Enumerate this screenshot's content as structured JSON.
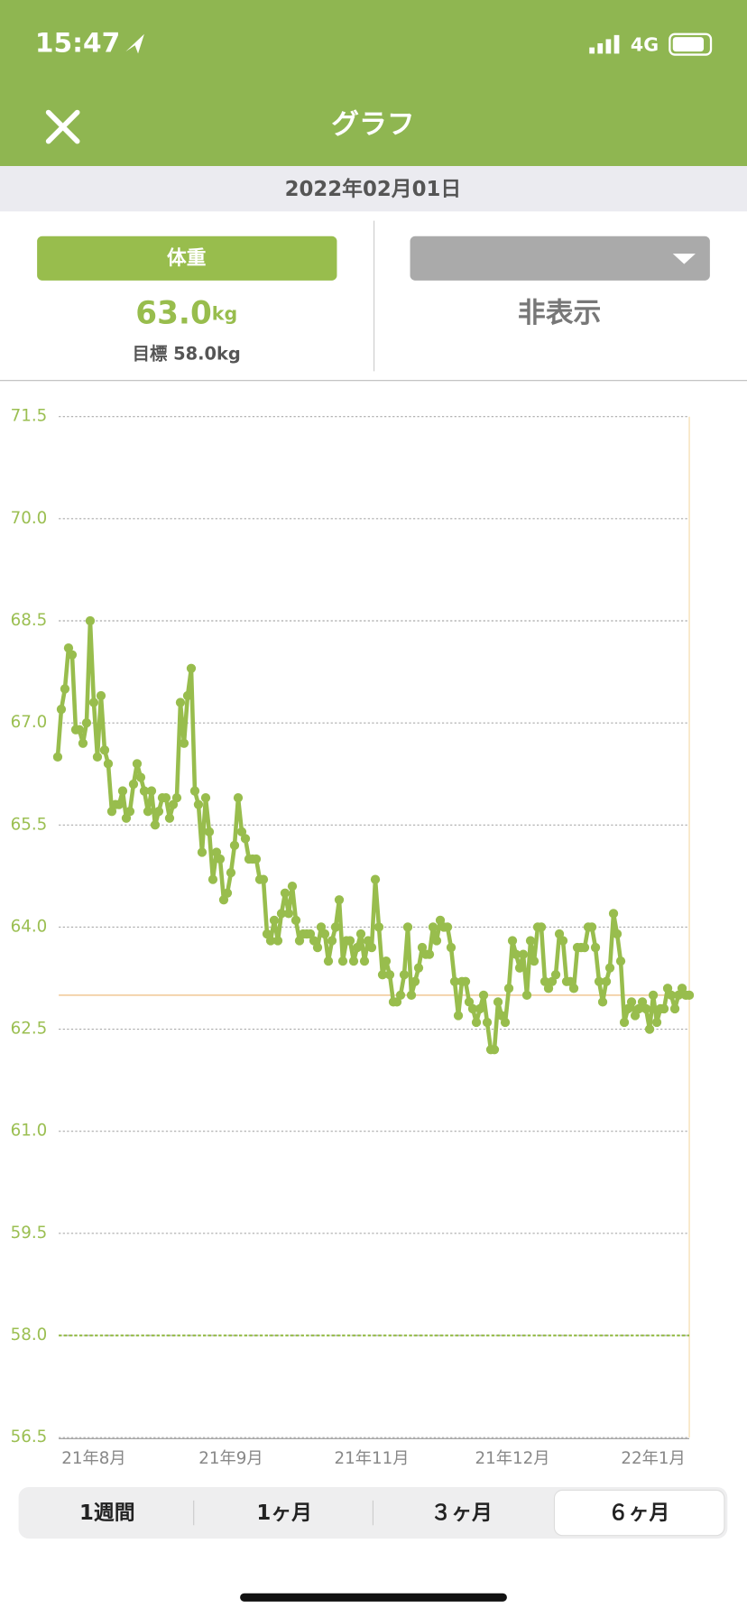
{
  "status_bar": {
    "time": "15:47",
    "network": "4G"
  },
  "header": {
    "title": "グラフ"
  },
  "date_bar": {
    "date": "2022年02月01日"
  },
  "left_panel": {
    "button": "体重",
    "value": "63.0",
    "unit": "kg",
    "goal": "目標 58.0kg"
  },
  "right_panel": {
    "value": "非表示"
  },
  "chart_data": {
    "type": "line",
    "series": [
      {
        "name": "体重",
        "color": "#98bd4d",
        "values": [
          66.5,
          67.2,
          67.5,
          68.1,
          68.0,
          66.9,
          66.9,
          66.7,
          67.0,
          68.5,
          67.3,
          66.5,
          67.4,
          66.6,
          66.4,
          65.7,
          65.8,
          65.8,
          66.0,
          65.6,
          65.7,
          66.1,
          66.4,
          66.2,
          66.0,
          65.7,
          66.0,
          65.5,
          65.7,
          65.9,
          65.9,
          65.6,
          65.8,
          65.9,
          67.3,
          66.7,
          67.4,
          67.8,
          66.0,
          65.8,
          65.1,
          65.9,
          65.4,
          64.7,
          65.1,
          65.0,
          64.4,
          64.5,
          64.8,
          65.2,
          65.9,
          65.4,
          65.3,
          65.0,
          65.0,
          65.0,
          64.7,
          64.7,
          63.9,
          63.8,
          64.1,
          63.8,
          64.2,
          64.5,
          64.2,
          64.6,
          64.1,
          63.8,
          63.9,
          63.9,
          63.9,
          63.8,
          63.7,
          64.0,
          63.9,
          63.5,
          63.8,
          64.0,
          64.4,
          63.5,
          63.8,
          63.8,
          63.5,
          63.7,
          63.9,
          63.5,
          63.8,
          63.7,
          64.7,
          64.0,
          63.3,
          63.5,
          63.3,
          62.9,
          62.9,
          63.0,
          63.3,
          64.0,
          63.0,
          63.2,
          63.4,
          63.7,
          63.6,
          63.6,
          64.0,
          63.8,
          64.1,
          64.0,
          64.0,
          63.7,
          63.2,
          62.7,
          63.2,
          63.2,
          62.9,
          62.8,
          62.6,
          62.8,
          63.0,
          62.6,
          62.2,
          62.2,
          62.9,
          62.7,
          62.6,
          63.1,
          63.8,
          63.6,
          63.4,
          63.6,
          63.0,
          63.8,
          63.5,
          64.0,
          64.0,
          63.2,
          63.1,
          63.2,
          63.3,
          63.9,
          63.8,
          63.2,
          63.2,
          63.1,
          63.7,
          63.7,
          63.7,
          64.0,
          64.0,
          63.7,
          63.2,
          62.9,
          63.2,
          63.4,
          64.2,
          63.9,
          63.5,
          62.6,
          62.8,
          62.9,
          62.7,
          62.8,
          62.9,
          62.8,
          62.5,
          63.0,
          62.6,
          62.8,
          62.8,
          63.1,
          63.0,
          62.8,
          63.0,
          63.1,
          63.0,
          63.0
        ]
      }
    ],
    "xlim": [
      0,
      175
    ],
    "xticks": [
      {
        "value": 10,
        "label": "21年8月"
      },
      {
        "value": 48,
        "label": "21年9月"
      },
      {
        "value": 87,
        "label": "21年11月"
      },
      {
        "value": 126,
        "label": "21年12月"
      },
      {
        "value": 165,
        "label": "22年1月"
      }
    ],
    "ylim": [
      56.5,
      71.5
    ],
    "yticks": [
      56.5,
      {
        "value": 58,
        "label": "58.0"
      },
      59.5,
      {
        "value": 61,
        "label": "61.0"
      },
      62.5,
      {
        "value": 64,
        "label": "64.0"
      },
      65.5,
      {
        "value": 67,
        "label": "67.0"
      },
      68.5,
      {
        "value": 70,
        "label": "70.0"
      },
      71.5
    ],
    "grid": true,
    "reference_lines": [
      {
        "value": 63.0,
        "color": "#f3cfa3"
      },
      {
        "value": 58.0,
        "color": "#9bbf52",
        "dashed": true
      }
    ]
  },
  "segments": {
    "items": [
      "1週間",
      "1ヶ月",
      "３ヶ月",
      "６ヶ月"
    ],
    "selected": 3
  }
}
